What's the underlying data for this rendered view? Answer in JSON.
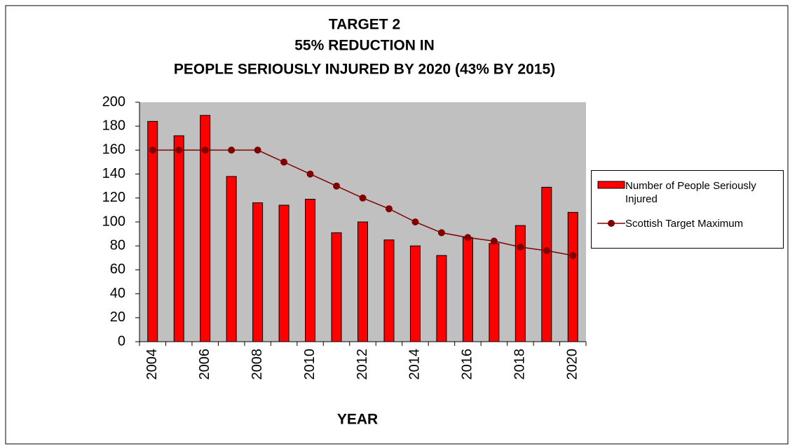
{
  "chart_data": {
    "type": "bar",
    "title": [
      "TARGET 2",
      "55%  REDUCTION IN",
      "PEOPLE SERIOUSLY INJURED BY 2020  (43%  BY 2015)"
    ],
    "x_label": "YEAR",
    "categories": [
      "2004",
      null,
      "2006",
      null,
      "2008",
      null,
      "2010",
      null,
      "2012",
      null,
      "2014",
      null,
      "2016",
      null,
      "2018",
      null,
      "2020"
    ],
    "series": [
      {
        "name": "Number of People Seriously Injured",
        "type": "bar",
        "color": "#ff0000",
        "values": [
          184,
          172,
          189,
          138,
          116,
          114,
          119,
          91,
          100,
          85,
          80,
          72,
          87,
          82,
          97,
          129,
          108
        ]
      },
      {
        "name": "Scottish Target Maximum",
        "type": "line",
        "color": "#800000",
        "values": [
          160,
          160,
          160,
          160,
          160,
          150,
          140,
          130,
          120,
          111,
          100,
          91,
          87,
          84,
          79,
          76,
          72
        ]
      }
    ],
    "ylim": [
      0,
      200
    ],
    "yticks": [
      0,
      20,
      40,
      60,
      80,
      100,
      120,
      140,
      160,
      180,
      200
    ],
    "legend": "right"
  }
}
